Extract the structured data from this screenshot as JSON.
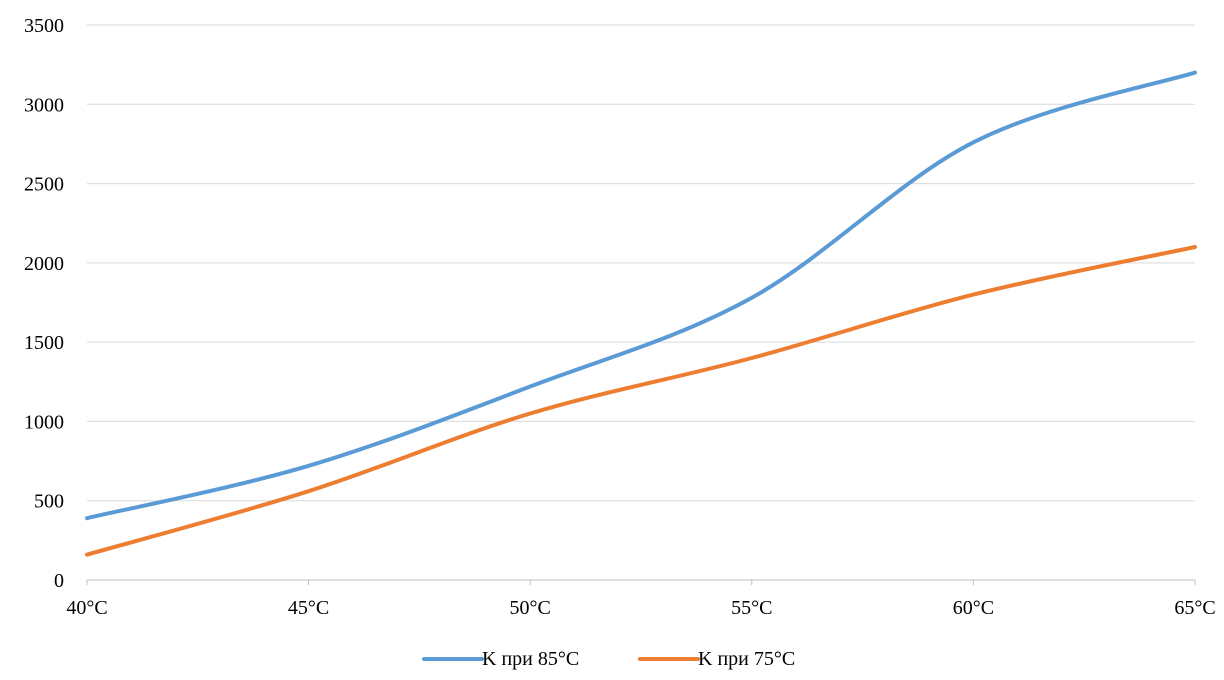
{
  "chart_data": {
    "type": "line",
    "title": "",
    "xlabel": "",
    "ylabel": "",
    "x": [
      "40°C",
      "45°C",
      "50°C",
      "55°C",
      "60°C",
      "65°C"
    ],
    "x_values": [
      40,
      45,
      50,
      55,
      60,
      65
    ],
    "xlim": [
      40,
      65
    ],
    "ylim": [
      0,
      3500
    ],
    "y_ticks": [
      0,
      500,
      1000,
      1500,
      2000,
      2500,
      3000,
      3500
    ],
    "y_tick_labels": [
      "0",
      "500",
      "1000",
      "1500",
      "2000",
      "2500",
      "3000",
      "3500"
    ],
    "grid": true,
    "legend_position": "bottom",
    "smooth": true,
    "series": [
      {
        "name": "K при 85°C",
        "color": "#5B9BD5",
        "values": [
          390,
          720,
          1220,
          1780,
          2760,
          3200
        ]
      },
      {
        "name": "K при 75°C",
        "color": "#ED7D31",
        "values": [
          160,
          560,
          1050,
          1400,
          1800,
          2100
        ]
      }
    ]
  }
}
